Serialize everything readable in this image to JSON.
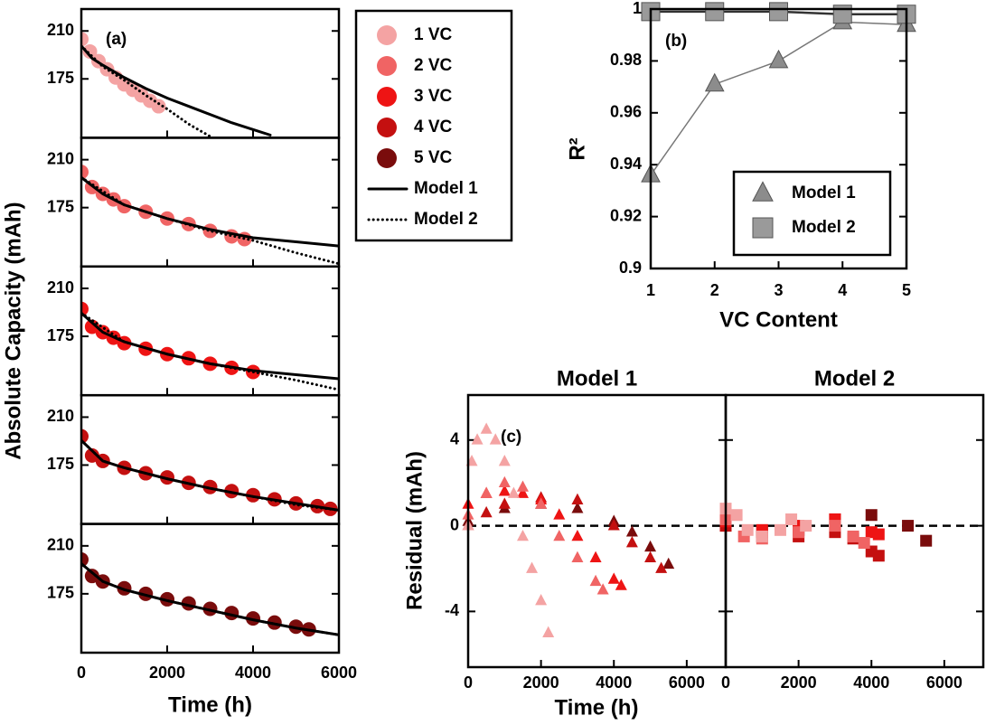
{
  "chart_data": [
    {
      "type": "line",
      "label": "(a)",
      "y_label": "Absolute Capacity (mAh)",
      "x_label": "Time (h)",
      "xlim": [
        0,
        6000
      ],
      "xticks": [
        0,
        2000,
        4000,
        6000
      ],
      "ylim": [
        132,
        226
      ],
      "yticks": [
        175,
        210
      ],
      "panels": [
        {
          "series": [
            {
              "name": "1 VC",
              "color": "#f4a3a3",
              "marker": "circle",
              "x": [
                0,
                200,
                400,
                600,
                800,
                1000,
                1200,
                1400,
                1600,
                1800
              ],
              "values": [
                204,
                195,
                188,
                182,
                176,
                171,
                167,
                163,
                159,
                155
              ]
            },
            {
              "name": "Model 1",
              "color": "#000000",
              "style": "solid",
              "x": [
                0,
                250,
                500,
                1000,
                1500,
                2000,
                2500,
                3000,
                3500,
                4000,
                4400
              ],
              "values": [
                199,
                190,
                185,
                176,
                168,
                161,
                155,
                149,
                143,
                138,
                134
              ]
            },
            {
              "name": "Model 2",
              "color": "#000000",
              "style": "dotted",
              "x": [
                0,
                500,
                1000,
                1500,
                2000,
                2500,
                3000
              ],
              "values": [
                199,
                184,
                174,
                163,
                153,
                142,
                133
              ]
            }
          ]
        },
        {
          "series": [
            {
              "name": "2 VC",
              "color": "#f06464",
              "marker": "circle",
              "x": [
                0,
                250,
                500,
                750,
                1000,
                1500,
                2000,
                2500,
                3000,
                3500,
                3800
              ],
              "values": [
                201,
                190,
                185,
                181,
                176,
                172,
                167,
                163,
                158,
                154,
                152
              ]
            },
            {
              "name": "Model 1",
              "color": "#000000",
              "style": "solid",
              "x": [
                0,
                500,
                1000,
                2000,
                3000,
                4000,
                5000,
                6000
              ],
              "values": [
                197,
                185,
                177,
                167,
                159,
                153,
                150,
                147
              ]
            },
            {
              "name": "Model 2",
              "color": "#000000",
              "style": "dotted",
              "x": [
                0,
                1000,
                2000,
                3000,
                4000,
                5000,
                6000
              ],
              "values": [
                197,
                177,
                167,
                158,
                151,
                142,
                134
              ]
            }
          ]
        },
        {
          "series": [
            {
              "name": "3 VC",
              "color": "#ee1414",
              "marker": "circle",
              "x": [
                0,
                250,
                500,
                750,
                1000,
                1500,
                2000,
                2500,
                3000,
                3500,
                4000
              ],
              "values": [
                195,
                182,
                178,
                174,
                170,
                166,
                162,
                159,
                155,
                152,
                149
              ]
            },
            {
              "name": "Model 1",
              "color": "#000000",
              "style": "solid",
              "x": [
                0,
                500,
                1000,
                2000,
                3000,
                4000,
                5000,
                6000
              ],
              "values": [
                192,
                178,
                171,
                162,
                155,
                150,
                147,
                144
              ]
            },
            {
              "name": "Model 2",
              "color": "#000000",
              "style": "dotted",
              "x": [
                0,
                1000,
                2000,
                3000,
                4000,
                5000,
                6000
              ],
              "values": [
                192,
                171,
                162,
                155,
                149,
                143,
                136
              ]
            }
          ]
        },
        {
          "series": [
            {
              "name": "4 VC",
              "color": "#c41010",
              "marker": "circle",
              "x": [
                0,
                250,
                500,
                1000,
                1500,
                2000,
                2500,
                3000,
                3500,
                4000,
                4500,
                5000,
                5500,
                5800
              ],
              "values": [
                196,
                182,
                178,
                173,
                169,
                166,
                162,
                159,
                156,
                153,
                150,
                147,
                145,
                143
              ]
            },
            {
              "name": "Model 1",
              "color": "#000000",
              "style": "solid",
              "x": [
                0,
                500,
                1000,
                2000,
                3000,
                4000,
                5000,
                6000
              ],
              "values": [
                193,
                178,
                173,
                165,
                158,
                152,
                147,
                142
              ]
            },
            {
              "name": "Model 2",
              "color": "#000000",
              "style": "dotted",
              "x": [
                0,
                500,
                1000,
                2000,
                3000,
                4000,
                5000,
                6000
              ],
              "values": [
                193,
                178,
                173,
                165,
                158,
                152,
                146,
                142
              ]
            }
          ]
        },
        {
          "series": [
            {
              "name": "5 VC",
              "color": "#7a0c0c",
              "marker": "circle",
              "x": [
                0,
                250,
                500,
                1000,
                1500,
                2000,
                2500,
                3000,
                3500,
                4000,
                4500,
                5000,
                5300
              ],
              "values": [
                200,
                188,
                184,
                179,
                175,
                171,
                168,
                164,
                161,
                157,
                154,
                151,
                149
              ]
            },
            {
              "name": "Model 1",
              "color": "#000000",
              "style": "solid",
              "x": [
                0,
                500,
                1000,
                2000,
                3000,
                4000,
                5000,
                6000
              ],
              "values": [
                197,
                184,
                178,
                170,
                163,
                156,
                150,
                145
              ]
            },
            {
              "name": "Model 2",
              "color": "#000000",
              "style": "dotted",
              "x": [
                0,
                500,
                1000,
                2000,
                3000,
                4000,
                5000,
                6000
              ],
              "values": [
                197,
                184,
                178,
                170,
                163,
                156,
                150,
                145
              ]
            }
          ]
        }
      ]
    },
    {
      "type": "scatter",
      "label": "(b)",
      "x_label": "VC Content",
      "y_label": "R²",
      "x": [
        1,
        2,
        3,
        4,
        5
      ],
      "xlim": [
        1,
        5
      ],
      "xticks": [
        1,
        2,
        3,
        4,
        5
      ],
      "ylim": [
        0.9,
        1
      ],
      "yticks": [
        0.9,
        0.92,
        0.94,
        0.96,
        0.98,
        1
      ],
      "series": [
        {
          "name": "Model 1",
          "color": "#8c8c8c",
          "marker": "triangle",
          "values": [
            0.936,
            0.971,
            0.98,
            0.995,
            0.994
          ]
        },
        {
          "name": "Model 2",
          "color": "#9a9a9a",
          "marker": "square",
          "values": [
            0.999,
            0.999,
            0.999,
            0.998,
            0.998
          ]
        }
      ]
    },
    {
      "type": "scatter",
      "label": "(c)",
      "y_label": "Residual (mAh)",
      "x_label": "Time (h)",
      "xlim": [
        0,
        7070
      ],
      "xticks": [
        0,
        2000,
        4000,
        6000
      ],
      "ylim": [
        -6.6,
        6.1
      ],
      "yticks": [
        -4,
        0,
        4
      ],
      "hline": 0,
      "panels": [
        {
          "title": "Model 1",
          "marker": "triangle",
          "series": [
            {
              "color": "#7a0c0c",
              "x": [
                0,
                1000,
                2000,
                3000,
                4000,
                4500,
                5000,
                5500
              ],
              "values": [
                0.2,
                0.8,
                1,
                0.8,
                0.2,
                -0.3,
                -1,
                -1.8
              ]
            },
            {
              "color": "#c41010",
              "x": [
                0,
                500,
                1000,
                2000,
                3000,
                4000,
                4500,
                5000,
                5300
              ],
              "values": [
                0,
                0.6,
                1,
                1.3,
                1.2,
                0,
                -0.8,
                -1.5,
                -2
              ]
            },
            {
              "color": "#ee1414",
              "x": [
                0,
                500,
                1000,
                1500,
                2000,
                2500,
                3000,
                3500,
                4000,
                4200
              ],
              "values": [
                1,
                1.5,
                1.6,
                1.5,
                1.2,
                0.5,
                -0.5,
                -1.5,
                -2.5,
                -2.8
              ]
            },
            {
              "color": "#f06464",
              "x": [
                0,
                500,
                1000,
                1500,
                2000,
                2500,
                3000,
                3500,
                3700
              ],
              "values": [
                0.5,
                1.5,
                2,
                1.8,
                1,
                -0.5,
                -1.5,
                -2.6,
                -3
              ]
            },
            {
              "color": "#f4a3a3",
              "x": [
                0,
                100,
                250,
                500,
                750,
                1000,
                1250,
                1500,
                1750,
                2000,
                2200
              ],
              "values": [
                0,
                3,
                4,
                4.5,
                4,
                3,
                1.5,
                -0.5,
                -2,
                -3.5,
                -5
              ]
            }
          ]
        },
        {
          "title": "Model 2",
          "marker": "square",
          "series": [
            {
              "color": "#7a0c0c",
              "x": [
                0,
                1000,
                2000,
                3000,
                4000,
                5000,
                5500
              ],
              "values": [
                0,
                -0.3,
                -0.2,
                0.3,
                0.5,
                0,
                -0.7
              ]
            },
            {
              "color": "#c41010",
              "x": [
                0,
                1000,
                2000,
                3000,
                3500,
                4000,
                4200
              ],
              "values": [
                0,
                -0.5,
                -0.5,
                -0.3,
                -0.6,
                -1.2,
                -1.4
              ]
            },
            {
              "color": "#ee1414",
              "x": [
                0,
                1000,
                2000,
                3000,
                4000,
                4200
              ],
              "values": [
                0.2,
                -0.2,
                0,
                0.3,
                -0.3,
                -0.4
              ]
            },
            {
              "color": "#f06464",
              "x": [
                0,
                500,
                1000,
                2000,
                3000,
                3500,
                3800
              ],
              "values": [
                0.3,
                -0.5,
                -0.6,
                -0.3,
                0,
                -0.5,
                -0.8
              ]
            },
            {
              "color": "#f4a3a3",
              "x": [
                0,
                300,
                600,
                1000,
                1500,
                1800,
                2200
              ],
              "values": [
                0.8,
                0.5,
                -0.2,
                -0.5,
                -0.2,
                0.3,
                0
              ]
            }
          ]
        }
      ]
    }
  ]
}
